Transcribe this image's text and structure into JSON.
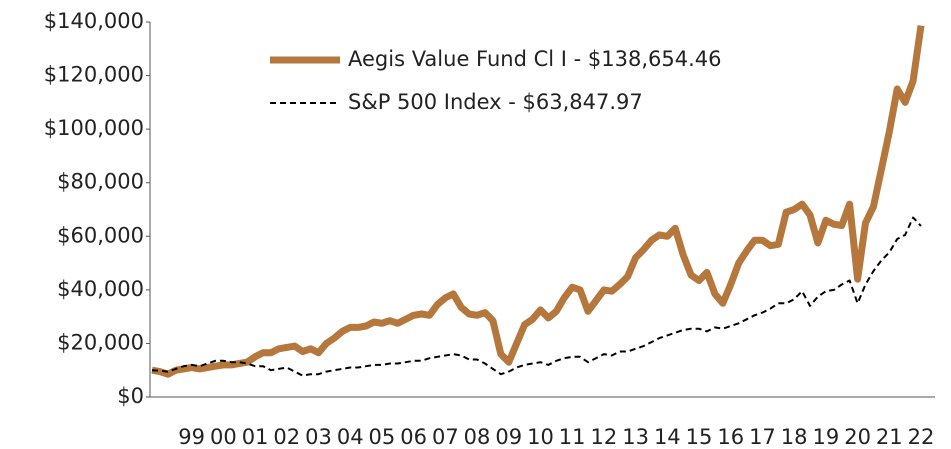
{
  "chart_data": {
    "type": "line",
    "categories": [
      null,
      null,
      null,
      null,
      null,
      "99",
      null,
      null,
      null,
      "00",
      null,
      null,
      null,
      "01",
      null,
      null,
      null,
      "02",
      null,
      null,
      null,
      "03",
      null,
      null,
      null,
      "04",
      null,
      null,
      null,
      "05",
      null,
      null,
      null,
      "06",
      null,
      null,
      null,
      "07",
      null,
      null,
      null,
      "08",
      null,
      null,
      null,
      "09",
      null,
      null,
      null,
      "10",
      null,
      null,
      null,
      "11",
      null,
      null,
      null,
      "12",
      null,
      null,
      null,
      "13",
      null,
      null,
      null,
      "14",
      null,
      null,
      null,
      "15",
      null,
      null,
      null,
      "16",
      null,
      null,
      null,
      "17",
      null,
      null,
      null,
      "18",
      null,
      null,
      null,
      "19",
      null,
      null,
      null,
      "20",
      null,
      null,
      null,
      "21",
      null,
      null,
      null,
      "22"
    ],
    "series": [
      {
        "name": "Aegis Value Fund Cl I - $138,654.46",
        "color": "#b5773c",
        "style": "solid",
        "values": [
          10000,
          9500,
          8500,
          10000,
          10500,
          11000,
          10500,
          11000,
          11500,
          12000,
          12000,
          12500,
          13000,
          15000,
          16500,
          16500,
          18000,
          18500,
          19000,
          17000,
          18000,
          16500,
          20000,
          22000,
          24500,
          26000,
          26000,
          26500,
          28000,
          27500,
          28500,
          27500,
          29000,
          30500,
          31000,
          30500,
          34500,
          37000,
          38500,
          33500,
          31000,
          30500,
          31500,
          28500,
          16000,
          13000,
          20000,
          27000,
          29000,
          32500,
          29500,
          32000,
          37000,
          41000,
          40000,
          32000,
          36000,
          40000,
          39500,
          42000,
          45000,
          52000,
          55000,
          58500,
          60500,
          60000,
          63000,
          53000,
          45500,
          43500,
          46500,
          38500,
          35000,
          42000,
          50000,
          54500,
          58500,
          58500,
          56500,
          57000,
          69000,
          70000,
          72000,
          68000,
          57500,
          66000,
          64500,
          64000,
          72000,
          44000,
          65000,
          71000,
          85000,
          99000,
          115000,
          110000,
          118000,
          138654.46
        ]
      },
      {
        "name": "S&P 500 Index - $63,847.97",
        "color": "#000000",
        "style": "dashed",
        "values": [
          10000,
          9800,
          9500,
          10500,
          11500,
          12000,
          11500,
          12500,
          13500,
          13500,
          13000,
          13000,
          12500,
          11500,
          11500,
          10000,
          10500,
          11000,
          9500,
          8000,
          8500,
          8500,
          9500,
          10000,
          10500,
          11000,
          11000,
          11500,
          12000,
          12000,
          12500,
          12500,
          13000,
          13500,
          13500,
          14500,
          15000,
          15500,
          16000,
          15500,
          14000,
          14000,
          12500,
          10500,
          8500,
          9500,
          11000,
          12000,
          12500,
          13000,
          12000,
          13500,
          14500,
          15000,
          15000,
          13000,
          14500,
          16000,
          15500,
          17000,
          17000,
          18000,
          19000,
          20500,
          22000,
          23000,
          24000,
          25000,
          25500,
          25500,
          24500,
          26000,
          25500,
          26500,
          27500,
          29000,
          30500,
          31500,
          33000,
          35000,
          35000,
          36500,
          39500,
          34000,
          37500,
          39500,
          40000,
          42000,
          43500,
          35000,
          42000,
          47000,
          51000,
          54000,
          59000,
          60500,
          67000,
          63847.97
        ]
      }
    ],
    "ylim": [
      0,
      140000
    ],
    "yticks": [
      {
        "value": 0,
        "label": "$0"
      },
      {
        "value": 20000,
        "label": "$20,000"
      },
      {
        "value": 40000,
        "label": "$40,000"
      },
      {
        "value": 60000,
        "label": "$60,000"
      },
      {
        "value": 80000,
        "label": "$80,000"
      },
      {
        "value": 100000,
        "label": "$100,000"
      },
      {
        "value": 120000,
        "label": "$120,000"
      },
      {
        "value": 140000,
        "label": "$140,000"
      }
    ],
    "grid": false,
    "legend": "upper left"
  }
}
